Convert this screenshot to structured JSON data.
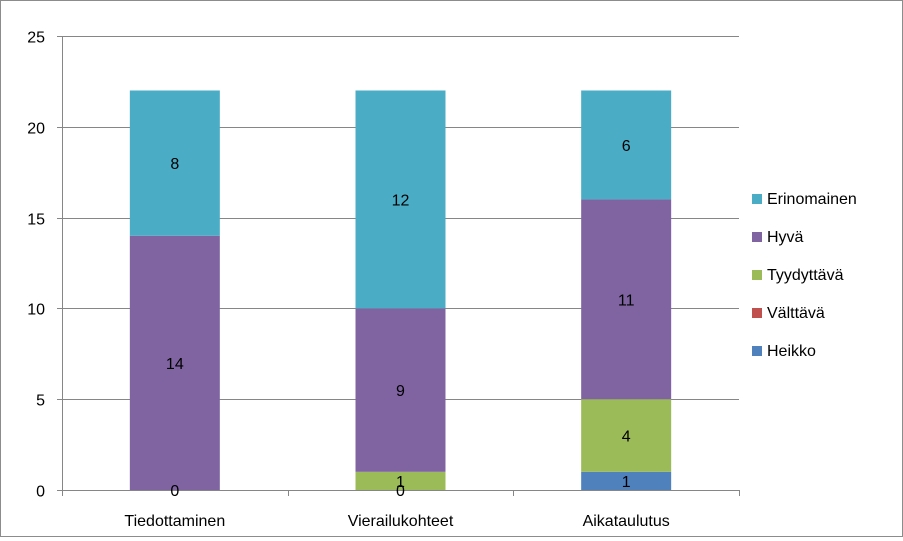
{
  "chart_data": {
    "type": "bar",
    "stacked": true,
    "categories": [
      "Tiedottaminen",
      "Vierailukohteet",
      "Aikataulutus"
    ],
    "series": [
      {
        "name": "Heikko",
        "values": [
          0,
          0,
          1
        ],
        "color": "#4f81bd",
        "labels": [
          "",
          "",
          "1"
        ]
      },
      {
        "name": "Välttävä",
        "values": [
          0,
          0,
          0
        ],
        "color": "#c0504d",
        "labels": [
          "0",
          "0",
          ""
        ]
      },
      {
        "name": "Tyydyttävä",
        "values": [
          0,
          1,
          4
        ],
        "color": "#9bbb59",
        "labels": [
          "",
          "1",
          "4"
        ]
      },
      {
        "name": "Hyvä",
        "values": [
          14,
          9,
          11
        ],
        "color": "#8064a2",
        "labels": [
          "14",
          "9",
          "11"
        ]
      },
      {
        "name": "Erinomainen",
        "values": [
          8,
          12,
          6
        ],
        "color": "#4bacc6",
        "labels": [
          "8",
          "12",
          "6"
        ]
      }
    ],
    "legend_order": [
      "Erinomainen",
      "Hyvä",
      "Tyydyttävä",
      "Välttävä",
      "Heikko"
    ],
    "legend_position": "right",
    "ylim": [
      0,
      25
    ],
    "yticks": [
      0,
      5,
      10,
      15,
      20,
      25
    ],
    "grid": true,
    "title": "",
    "xlabel": "",
    "ylabel": ""
  }
}
